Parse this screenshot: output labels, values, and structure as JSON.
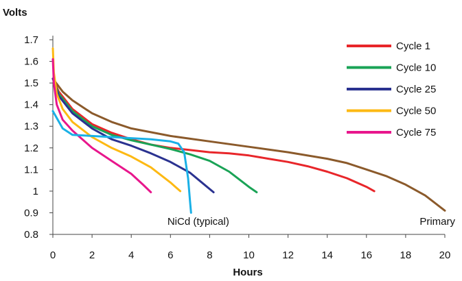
{
  "chart_data": {
    "type": "line",
    "title": "",
    "xlabel": "Hours",
    "ylabel": "Volts",
    "xlim": [
      0,
      20
    ],
    "ylim": [
      0.8,
      1.7
    ],
    "x_ticks": [
      "0",
      "2",
      "4",
      "6",
      "8",
      "10",
      "12",
      "14",
      "16",
      "18",
      "20"
    ],
    "y_ticks": [
      "0.8",
      "0.9",
      "1",
      "1.1",
      "1.2",
      "1.3",
      "1.4",
      "1.5",
      "1.6",
      "1.7"
    ],
    "grid": false,
    "legend_position": "top-right",
    "series": [
      {
        "name": "Cycle 1",
        "color": "#e8262a",
        "in_legend": true,
        "x": [
          0,
          0.3,
          1,
          2,
          3,
          4,
          5,
          6,
          7,
          8,
          9,
          10,
          11,
          12,
          13,
          14,
          15,
          16,
          16.4
        ],
        "y": [
          1.52,
          1.46,
          1.38,
          1.31,
          1.27,
          1.24,
          1.215,
          1.2,
          1.19,
          1.18,
          1.175,
          1.165,
          1.15,
          1.135,
          1.115,
          1.09,
          1.06,
          1.02,
          1.0
        ]
      },
      {
        "name": "Cycle 10",
        "color": "#1aa356",
        "in_legend": true,
        "x": [
          0,
          0.3,
          1,
          2,
          3,
          4,
          5,
          6,
          7,
          8,
          9,
          10,
          10.4
        ],
        "y": [
          1.52,
          1.45,
          1.37,
          1.3,
          1.26,
          1.235,
          1.215,
          1.195,
          1.17,
          1.14,
          1.09,
          1.02,
          0.995
        ]
      },
      {
        "name": "Cycle 25",
        "color": "#2a3290",
        "in_legend": true,
        "x": [
          0,
          0.3,
          1,
          2,
          3,
          4,
          5,
          6,
          7,
          7.6,
          8.2
        ],
        "y": [
          1.52,
          1.44,
          1.36,
          1.29,
          1.24,
          1.21,
          1.175,
          1.135,
          1.085,
          1.04,
          0.995
        ]
      },
      {
        "name": "Cycle 50",
        "color": "#fdb913",
        "in_legend": true,
        "x": [
          0,
          0.05,
          0.2,
          0.5,
          1,
          2,
          3,
          4,
          5,
          6,
          6.5
        ],
        "y": [
          1.66,
          1.55,
          1.45,
          1.38,
          1.32,
          1.25,
          1.2,
          1.16,
          1.11,
          1.04,
          1.0
        ]
      },
      {
        "name": "Cycle 75",
        "color": "#e8168c",
        "in_legend": true,
        "x": [
          0,
          0.05,
          0.2,
          0.5,
          1,
          2,
          3,
          4,
          4.6,
          5
        ],
        "y": [
          1.61,
          1.5,
          1.4,
          1.33,
          1.28,
          1.2,
          1.14,
          1.08,
          1.03,
          0.995
        ]
      },
      {
        "name": "NiCd (typical)",
        "color": "#1ab0e6",
        "in_legend": false,
        "x": [
          0,
          0.5,
          1,
          2,
          3,
          4,
          5,
          6,
          6.4,
          6.7,
          6.9,
          7.0,
          7.05
        ],
        "y": [
          1.37,
          1.29,
          1.26,
          1.255,
          1.25,
          1.245,
          1.24,
          1.23,
          1.22,
          1.18,
          1.06,
          0.95,
          0.9
        ]
      },
      {
        "name": "Primary",
        "color": "#8b5a2b",
        "in_legend": false,
        "x": [
          0,
          0.5,
          1,
          2,
          3,
          4,
          6,
          8,
          10,
          12,
          14,
          15,
          16,
          17,
          18,
          19,
          20
        ],
        "y": [
          1.52,
          1.46,
          1.42,
          1.36,
          1.32,
          1.29,
          1.255,
          1.23,
          1.205,
          1.18,
          1.15,
          1.13,
          1.1,
          1.07,
          1.03,
          0.98,
          0.91
        ]
      }
    ],
    "annotations": [
      {
        "text": "NiCd (typical)",
        "x": 7.0,
        "y": 0.86
      },
      {
        "text": "Primary",
        "x": 20.0,
        "y": 0.86
      }
    ]
  }
}
